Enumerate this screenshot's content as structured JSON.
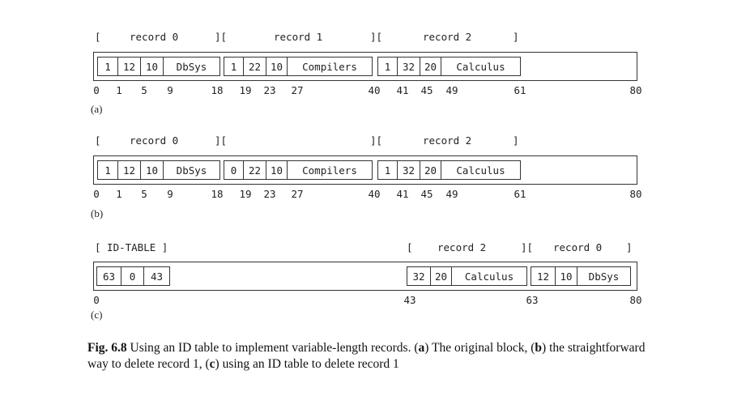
{
  "panels": [
    {
      "label": "(a)",
      "brackets": {
        "rec0_open": "[",
        "rec0_title": "record 0",
        "rec0_close": "][",
        "rec1_title": "record 1",
        "rec1_close": "][",
        "rec2_title": "record 2",
        "rec2_close": "]"
      },
      "records": [
        {
          "fields": [
            "1",
            "12",
            "10",
            "DbSys"
          ]
        },
        {
          "fields": [
            "1",
            "22",
            "10",
            "Compilers"
          ]
        },
        {
          "fields": [
            "1",
            "32",
            "20",
            "Calculus"
          ]
        }
      ],
      "ticks": [
        "0",
        "1",
        "5",
        "9",
        "18",
        "19",
        "23",
        "27",
        "40",
        "41",
        "45",
        "49",
        "61",
        "80"
      ]
    },
    {
      "label": "(b)",
      "brackets": {
        "rec0_open": "[",
        "rec0_title": "record 0",
        "rec0_close": "][",
        "rec1_close": "][",
        "rec2_title": "record 2",
        "rec2_close": "]"
      },
      "records": [
        {
          "fields": [
            "1",
            "12",
            "10",
            "DbSys"
          ]
        },
        {
          "fields": [
            "0",
            "22",
            "10",
            "Compilers"
          ]
        },
        {
          "fields": [
            "1",
            "32",
            "20",
            "Calculus"
          ]
        }
      ],
      "ticks": [
        "0",
        "1",
        "5",
        "9",
        "18",
        "19",
        "23",
        "27",
        "40",
        "41",
        "45",
        "49",
        "61",
        "80"
      ]
    },
    {
      "label": "(c)",
      "brackets": {
        "idtable": "[ ID-TABLE ]",
        "rec2_open": "[",
        "rec2_title": "record 2",
        "rec2_close": "][",
        "rec0_title": "record 0",
        "rec0_close": "]"
      },
      "records": [
        {
          "fields": [
            "63",
            "0",
            "43"
          ]
        },
        {
          "fields": [
            "32",
            "20",
            "Calculus"
          ]
        },
        {
          "fields": [
            "12",
            "10",
            "DbSys"
          ]
        }
      ],
      "ticks": [
        "0",
        "43",
        "63",
        "80"
      ]
    }
  ],
  "caption": {
    "fig": "Fig. 6.8",
    "text1": " Using an ID table to implement variable-length records. (",
    "a": "a",
    "text2": ") The original block, (",
    "b": "b",
    "text3": ") the straightforward way to delete record 1, (",
    "c": "c",
    "text4": ") using an ID table to delete record 1"
  }
}
